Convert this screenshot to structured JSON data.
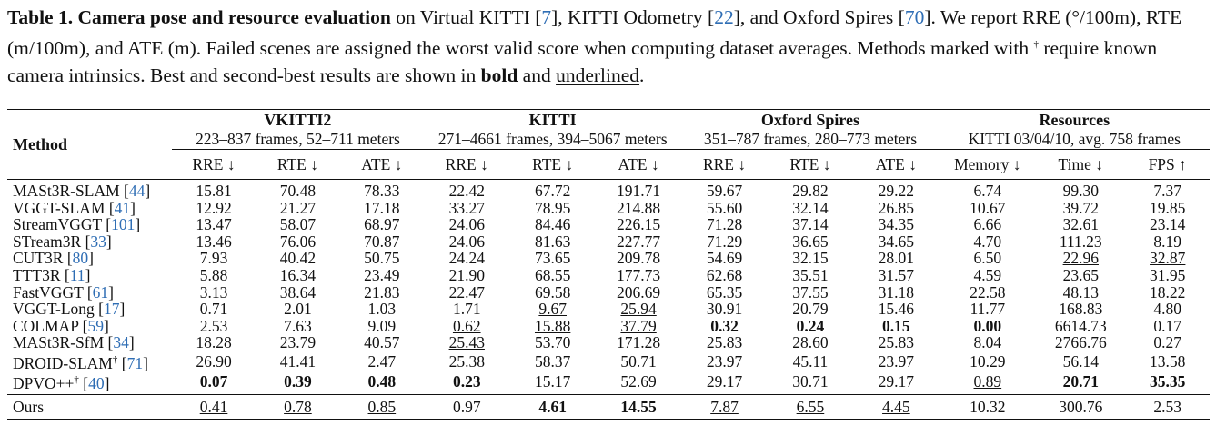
{
  "caption": {
    "label": "Table 1.",
    "title": "Camera pose and resource evaluation",
    "text_1": " on Virtual KITTI [",
    "ref_vkitti": "7",
    "text_2": "], KITTI Odometry [",
    "ref_kitti": "22",
    "text_3": "], and Oxford Spires [",
    "ref_oxford": "70",
    "text_4": "]. We report RRE (°/100m), RTE (m/100m), and ATE (m). Failed scenes are assigned the worst valid score when computing dataset averages. Methods marked with ",
    "dagger": "†",
    "text_5": " require known camera intrinsics. Best and second-best results are shown in ",
    "bold_word": "bold",
    "and_word": " and ",
    "underlined_word": "underlined",
    "period": "."
  },
  "table": {
    "method_header": "Method",
    "groups": [
      {
        "name": "VKITTI2",
        "sub": "223–837 frames, 52–711 meters"
      },
      {
        "name": "KITTI",
        "sub": "271–4661 frames, 394–5067 meters"
      },
      {
        "name": "Oxford Spires",
        "sub": "351–787 frames, 280–773 meters"
      },
      {
        "name": "Resources",
        "sub": "KITTI 03/04/10, avg. 758 frames"
      }
    ],
    "metrics": [
      "RRE ↓",
      "RTE ↓",
      "ATE ↓",
      "RRE ↓",
      "RTE ↓",
      "ATE ↓",
      "RRE ↓",
      "RTE ↓",
      "ATE ↓",
      "Memory ↓",
      "Time ↓",
      "FPS ↑"
    ],
    "rows": [
      {
        "name": "MASt3R-SLAM",
        "ref": "44",
        "dagger": "",
        "values": [
          "15.81",
          "70.48",
          "78.33",
          "22.42",
          "67.72",
          "191.71",
          "59.67",
          "29.82",
          "29.22",
          "6.74",
          "99.30",
          "7.37"
        ]
      },
      {
        "name": "VGGT-SLAM",
        "ref": "41",
        "dagger": "",
        "values": [
          "12.92",
          "21.27",
          "17.18",
          "33.27",
          "78.95",
          "214.88",
          "55.60",
          "32.14",
          "26.85",
          "10.67",
          "39.72",
          "19.85"
        ]
      },
      {
        "name": "StreamVGGT",
        "ref": "101",
        "dagger": "",
        "values": [
          "13.47",
          "58.07",
          "68.97",
          "24.06",
          "84.46",
          "226.15",
          "71.28",
          "37.14",
          "34.35",
          "6.66",
          "32.61",
          "23.14"
        ]
      },
      {
        "name": "STream3R",
        "ref": "33",
        "dagger": "",
        "values": [
          "13.46",
          "76.06",
          "70.87",
          "24.06",
          "81.63",
          "227.77",
          "71.29",
          "36.65",
          "34.65",
          "4.70",
          "111.23",
          "8.19"
        ]
      },
      {
        "name": "CUT3R",
        "ref": "80",
        "dagger": "",
        "values": [
          "7.93",
          "40.42",
          "50.75",
          "24.24",
          "73.65",
          "209.78",
          "54.69",
          "32.15",
          "28.01",
          "6.50",
          "22.96",
          "32.87"
        ]
      },
      {
        "name": "TTT3R",
        "ref": "11",
        "dagger": "",
        "values": [
          "5.88",
          "16.34",
          "23.49",
          "21.90",
          "68.55",
          "177.73",
          "62.68",
          "35.51",
          "31.57",
          "4.59",
          "23.65",
          "31.95"
        ]
      },
      {
        "name": "FastVGGT",
        "ref": "61",
        "dagger": "",
        "values": [
          "3.13",
          "38.64",
          "21.83",
          "22.47",
          "69.58",
          "206.69",
          "65.35",
          "37.55",
          "31.18",
          "22.58",
          "48.13",
          "18.22"
        ]
      },
      {
        "name": "VGGT-Long",
        "ref": "17",
        "dagger": "",
        "values": [
          "0.71",
          "2.01",
          "1.03",
          "1.71",
          "9.67",
          "25.94",
          "30.91",
          "20.79",
          "15.46",
          "11.77",
          "168.83",
          "4.80"
        ]
      },
      {
        "name": "COLMAP",
        "ref": "59",
        "dagger": "",
        "values": [
          "2.53",
          "7.63",
          "9.09",
          "0.62",
          "15.88",
          "37.79",
          "0.32",
          "0.24",
          "0.15",
          "0.00",
          "6614.73",
          "0.17"
        ]
      },
      {
        "name": "MASt3R-SfM",
        "ref": "34",
        "dagger": "",
        "values": [
          "18.28",
          "23.79",
          "40.57",
          "25.43",
          "53.70",
          "171.28",
          "25.83",
          "28.60",
          "25.83",
          "8.04",
          "2766.76",
          "0.27"
        ]
      },
      {
        "name": "DROID-SLAM",
        "ref": "71",
        "dagger": "†",
        "values": [
          "26.90",
          "41.41",
          "2.47",
          "25.38",
          "58.37",
          "50.71",
          "23.97",
          "45.11",
          "23.97",
          "10.29",
          "56.14",
          "13.58"
        ]
      },
      {
        "name": "DPVO++",
        "ref": "40",
        "dagger": "†",
        "values": [
          "0.07",
          "0.39",
          "0.48",
          "0.23",
          "15.17",
          "52.69",
          "29.17",
          "30.71",
          "29.17",
          "0.89",
          "20.71",
          "35.35"
        ]
      }
    ],
    "ours": {
      "name": "Ours",
      "values": [
        "0.41",
        "0.78",
        "0.85",
        "0.97",
        "4.61",
        "14.55",
        "7.87",
        "6.55",
        "4.45",
        "10.32",
        "300.76",
        "2.53"
      ]
    },
    "bold_cells": [
      [
        8,
        6
      ],
      [
        8,
        7
      ],
      [
        8,
        8
      ],
      [
        8,
        9
      ],
      [
        11,
        0
      ],
      [
        11,
        1
      ],
      [
        11,
        2
      ],
      [
        11,
        3
      ],
      [
        11,
        10
      ],
      [
        11,
        11
      ],
      [
        12,
        4
      ],
      [
        12,
        5
      ]
    ],
    "underline_cells": [
      [
        4,
        10
      ],
      [
        4,
        11
      ],
      [
        5,
        10
      ],
      [
        5,
        11
      ],
      [
        7,
        4
      ],
      [
        7,
        5
      ],
      [
        8,
        3
      ],
      [
        8,
        4
      ],
      [
        8,
        5
      ],
      [
        9,
        3
      ],
      [
        11,
        9
      ],
      [
        12,
        0
      ],
      [
        12,
        1
      ],
      [
        12,
        2
      ],
      [
        12,
        6
      ],
      [
        12,
        7
      ],
      [
        12,
        8
      ]
    ]
  }
}
